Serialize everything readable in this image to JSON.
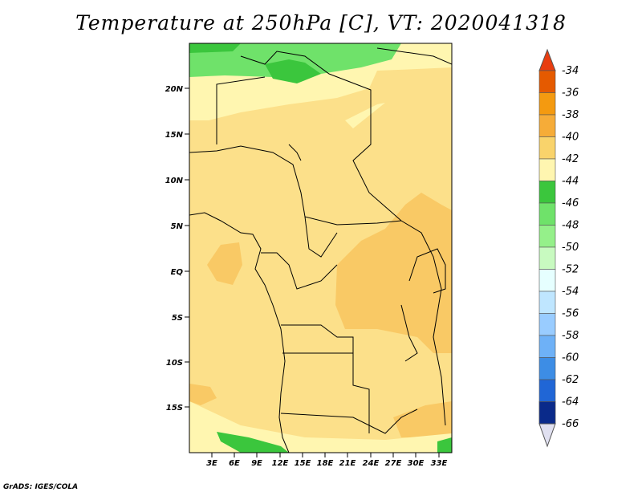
{
  "title": "Temperature at 250hPa [C], VT: 2020041318",
  "credit": "GrADS: IGES/COLA",
  "lat_ticks": [
    "20N",
    "15N",
    "10N",
    "5N",
    "EQ",
    "5S",
    "10S",
    "15S"
  ],
  "lon_ticks": [
    "3E",
    "6E",
    "9E",
    "12E",
    "15E",
    "18E",
    "21E",
    "24E",
    "27E",
    "30E",
    "33E"
  ],
  "colorbar": {
    "labels": [
      "-34",
      "-36",
      "-38",
      "-40",
      "-42",
      "-44",
      "-46",
      "-48",
      "-50",
      "-52",
      "-54",
      "-56",
      "-58",
      "-60",
      "-62",
      "-64",
      "-66"
    ],
    "colors": [
      "#e55a00",
      "#f48c00",
      "#f6ac38",
      "#f9d36b",
      "#fce089",
      "#fff6b2",
      "#35c23a",
      "#5fdc5f",
      "#95f08a",
      "#c8fac0",
      "#e6ffff",
      "#bfe6ff",
      "#99ccff",
      "#6eb1f7",
      "#3d8de5",
      "#2066d6",
      "#0f47b8",
      "#083093",
      "#00126e"
    ],
    "top_color": "#e83d10",
    "bottom_color": "#e0e0f0"
  },
  "legend_colors": {
    "c_36": "#f5a935",
    "c_38": "#f9c965",
    "c_40": "#fce08a",
    "c_42": "#fff6b0",
    "c_44": "#3bc63d",
    "c_46": "#6fe26a"
  }
}
